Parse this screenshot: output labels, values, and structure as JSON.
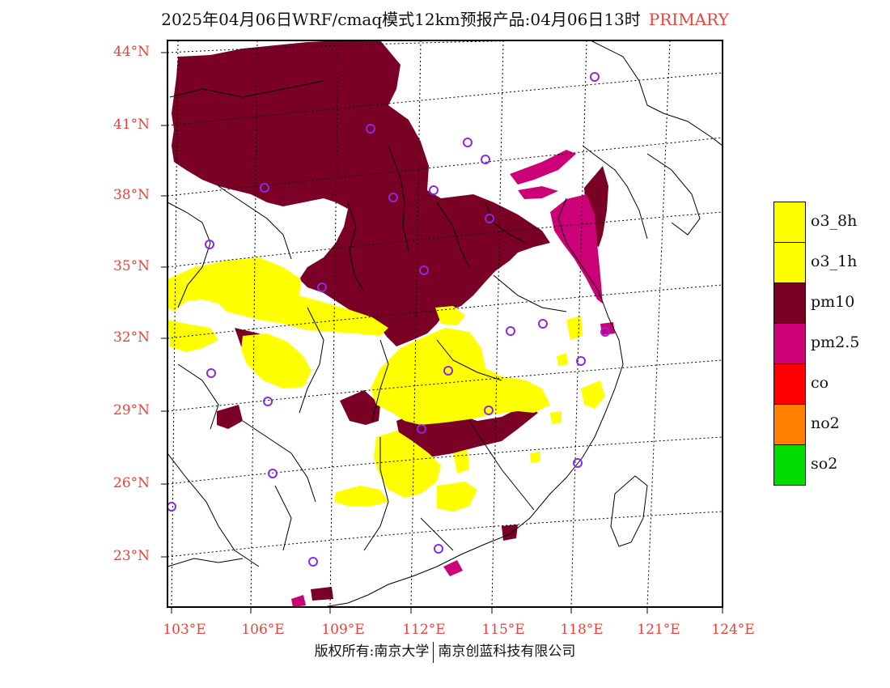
{
  "title": {
    "main": "2025年04月06日WRF/cmaq模式12km预报产品:04月06日13时",
    "tag": "PRIMARY"
  },
  "lat_labels": [
    "44°N",
    "41°N",
    "38°N",
    "35°N",
    "32°N",
    "29°N",
    "26°N",
    "23°N"
  ],
  "lon_labels": [
    "103°E",
    "106°E",
    "109°E",
    "112°E",
    "115°E",
    "118°E",
    "121°E",
    "124°E"
  ],
  "legend": [
    {
      "label": "o3_8h",
      "color": "#ffff00"
    },
    {
      "label": "o3_1h",
      "color": "#ffff00"
    },
    {
      "label": "pm10",
      "color": "#7a0026"
    },
    {
      "label": "pm2.5",
      "color": "#cc0077"
    },
    {
      "label": "co",
      "color": "#ff0000"
    },
    {
      "label": "no2",
      "color": "#ff7f00"
    },
    {
      "label": "so2",
      "color": "#00dd00"
    }
  ],
  "colors": {
    "pm10": "#7a0026",
    "pm25": "#cc0077",
    "o3": "#ffff00",
    "station_marker": "#8a2be2",
    "axis_label": "#e8423a"
  },
  "footer": {
    "left": "版权所有:南京大学",
    "right": "南京创蓝科技有限公司"
  }
}
